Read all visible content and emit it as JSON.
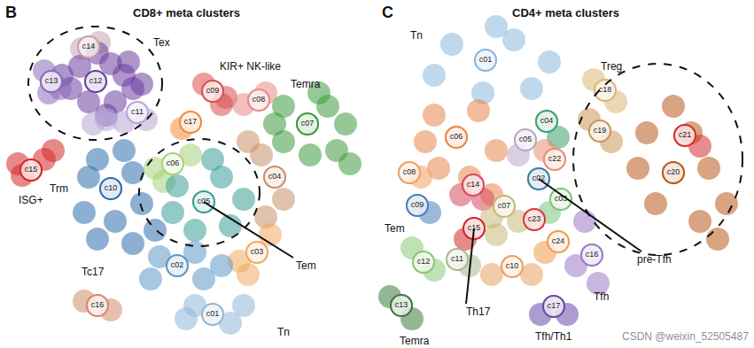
{
  "chart_data": [
    {
      "type": "scatter",
      "panel_label": "B",
      "title": "CD8+ meta clusters",
      "xlim": [
        0,
        420
      ],
      "ylim": [
        393,
        0
      ],
      "tick_labels": false,
      "grid": false,
      "clusters": [
        {
          "name": "c14",
          "color": "#c9a0b0",
          "points": [
            [
              100,
              53
            ],
            [
              112,
              48
            ],
            [
              92,
              55
            ]
          ]
        },
        {
          "name": "c12",
          "color": "#6b3fa0",
          "points": [
            [
              108,
              92
            ],
            [
              90,
              75
            ],
            [
              125,
              72
            ],
            [
              140,
              85
            ],
            [
              150,
              100
            ],
            [
              130,
              115
            ],
            [
              100,
              115
            ],
            [
              80,
              100
            ],
            [
              70,
              85
            ],
            [
              110,
              60
            ],
            [
              145,
              70
            ],
            [
              160,
              95
            ],
            [
              120,
              130
            ]
          ]
        },
        {
          "name": "c13",
          "color": "#8e6bb8",
          "points": [
            [
              58,
              92
            ],
            [
              50,
              80
            ],
            [
              55,
              105
            ],
            [
              68,
              100
            ]
          ]
        },
        {
          "name": "c11",
          "color": "#b8a6d6",
          "points": [
            [
              155,
              127
            ],
            [
              140,
              138
            ],
            [
              165,
              135
            ],
            [
              120,
              135
            ],
            [
              105,
              140
            ]
          ]
        },
        {
          "name": "c09",
          "color": "#d94f4f",
          "points": [
            [
              240,
              103
            ],
            [
              255,
              110
            ],
            [
              230,
              95
            ],
            [
              250,
              118
            ]
          ]
        },
        {
          "name": "c08",
          "color": "#e88a8a",
          "points": [
            [
              292,
              113
            ],
            [
              275,
              118
            ],
            [
              300,
              105
            ]
          ]
        },
        {
          "name": "c07",
          "color": "#3e9a3e",
          "points": [
            [
              347,
              140
            ],
            [
              320,
              120
            ],
            [
              370,
              120
            ],
            [
              390,
              140
            ],
            [
              380,
              170
            ],
            [
              350,
              175
            ],
            [
              320,
              160
            ],
            [
              395,
              185
            ],
            [
              310,
              140
            ],
            [
              360,
              105
            ]
          ]
        },
        {
          "name": "c17",
          "color": "#f08c3a",
          "points": [
            [
              215,
              138
            ],
            [
              205,
              145
            ]
          ]
        },
        {
          "name": "c15",
          "color": "#d62828",
          "points": [
            [
              35,
              192
            ],
            [
              20,
              185
            ],
            [
              50,
              180
            ],
            [
              60,
              170
            ],
            [
              25,
              198
            ]
          ]
        },
        {
          "name": "c06",
          "color": "#a8d47a",
          "points": [
            [
              195,
              185
            ],
            [
              175,
              190
            ],
            [
              215,
              175
            ],
            [
              185,
              205
            ]
          ]
        },
        {
          "name": "c10",
          "color": "#2f6fad",
          "points": [
            [
              125,
              213
            ],
            [
              110,
              180
            ],
            [
              140,
              170
            ],
            [
              100,
              200
            ],
            [
              95,
              240
            ],
            [
              130,
              250
            ],
            [
              160,
              230
            ],
            [
              150,
              195
            ],
            [
              110,
              270
            ],
            [
              150,
              275
            ],
            [
              175,
              260
            ]
          ]
        },
        {
          "name": "c05",
          "color": "#3a9e95",
          "points": [
            [
              230,
              228
            ],
            [
              200,
              210
            ],
            [
              250,
              200
            ],
            [
              275,
              225
            ],
            [
              260,
              255
            ],
            [
              220,
              260
            ],
            [
              195,
              240
            ],
            [
              240,
              180
            ]
          ]
        },
        {
          "name": "c04",
          "color": "#c8906a",
          "points": [
            [
              310,
              200
            ],
            [
              295,
              175
            ],
            [
              320,
              225
            ],
            [
              300,
              245
            ],
            [
              280,
              160
            ]
          ]
        },
        {
          "name": "c03",
          "color": "#f0a860",
          "points": [
            [
              290,
              285
            ],
            [
              270,
              295
            ],
            [
              305,
              265
            ],
            [
              280,
              310
            ]
          ]
        },
        {
          "name": "c02",
          "color": "#5e97c6",
          "points": [
            [
              200,
              300
            ],
            [
              180,
              290
            ],
            [
              220,
              285
            ],
            [
              170,
              315
            ],
            [
              230,
              315
            ],
            [
              250,
              300
            ]
          ]
        },
        {
          "name": "c01",
          "color": "#8fb8d8",
          "points": [
            [
              240,
              355
            ],
            [
              220,
              345
            ],
            [
              260,
              365
            ],
            [
              275,
              345
            ],
            [
              210,
              360
            ]
          ]
        },
        {
          "name": "c16",
          "color": "#d48a6a",
          "points": [
            [
              110,
              345
            ],
            [
              95,
              340
            ],
            [
              125,
              350
            ]
          ]
        }
      ],
      "groups": [
        {
          "label": "Tex",
          "label_at": [
            182,
            48
          ],
          "clusters": [
            "c12",
            "c13",
            "c14",
            "c11"
          ]
        },
        {
          "label": "KIR+ NK-like",
          "label_at": [
            282,
            75
          ]
        },
        {
          "label": "Temra",
          "label_at": [
            345,
            95
          ]
        },
        {
          "label": "ISG+",
          "label_at": [
            35,
            226
          ]
        },
        {
          "label": "Trm",
          "label_at": [
            66,
            213
          ]
        },
        {
          "label": "Tem",
          "label_at": [
            345,
            300
          ],
          "clusters": [
            "c06",
            "c05"
          ],
          "points_to": "c05"
        },
        {
          "label": "Tc17",
          "label_at": [
            105,
            307
          ]
        },
        {
          "label": "Tn",
          "label_at": [
            320,
            375
          ]
        }
      ]
    },
    {
      "type": "scatter",
      "panel_label": "C",
      "title": "CD4+ meta clusters",
      "xlim": [
        425,
        851
      ],
      "ylim": [
        393,
        0
      ],
      "tick_labels": false,
      "grid": false,
      "watermark": "CSDN @weixin_52505487",
      "clusters": [
        {
          "name": "c01",
          "color": "#8bb8dc",
          "points": [
            [
              548,
              68
            ],
            [
              510,
              50
            ],
            [
              580,
              45
            ],
            [
              620,
              70
            ],
            [
              490,
              85
            ],
            [
              545,
              105
            ],
            [
              600,
              100
            ],
            [
              560,
              30
            ]
          ]
        },
        {
          "name": "c18",
          "color": "#d8b878",
          "points": [
            [
              683,
              102
            ],
            [
              670,
              90
            ],
            [
              695,
              115
            ]
          ]
        },
        {
          "name": "c19",
          "color": "#c89858",
          "points": [
            [
              677,
              148
            ],
            [
              665,
              135
            ],
            [
              690,
              160
            ]
          ]
        },
        {
          "name": "c20",
          "color": "#b85a1a",
          "points": [
            [
              760,
              195
            ],
            [
              730,
              150
            ],
            [
              780,
              150
            ],
            [
              800,
              190
            ],
            [
              820,
              230
            ],
            [
              790,
              250
            ],
            [
              740,
              230
            ],
            [
              720,
              190
            ],
            [
              760,
              120
            ],
            [
              810,
              270
            ]
          ]
        },
        {
          "name": "c21",
          "color": "#d63030",
          "points": [
            [
              773,
              153
            ],
            [
              790,
              165
            ]
          ]
        },
        {
          "name": "c06",
          "color": "#e8874a",
          "points": [
            [
              515,
              155
            ],
            [
              490,
              130
            ],
            [
              540,
              125
            ],
            [
              560,
              170
            ],
            [
              530,
              200
            ],
            [
              495,
              190
            ],
            [
              480,
              160
            ],
            [
              555,
              220
            ]
          ]
        },
        {
          "name": "c04",
          "color": "#3aa070",
          "points": [
            [
              617,
              137
            ],
            [
              630,
              155
            ]
          ]
        },
        {
          "name": "c05",
          "color": "#b9a8c8",
          "points": [
            [
              593,
              158
            ],
            [
              585,
              175
            ]
          ]
        },
        {
          "name": "c22",
          "color": "#e89070",
          "points": [
            [
              626,
              180
            ],
            [
              615,
              170
            ]
          ]
        },
        {
          "name": "c08",
          "color": "#f0a060",
          "points": [
            [
              462,
              195
            ],
            [
              475,
              200
            ]
          ]
        },
        {
          "name": "c02",
          "color": "#3a7fa0",
          "points": [
            [
              608,
              202
            ]
          ]
        },
        {
          "name": "c14",
          "color": "#d84860",
          "points": [
            [
              534,
              209
            ],
            [
              520,
              220
            ],
            [
              545,
              225
            ]
          ]
        },
        {
          "name": "c09",
          "color": "#4a80b8",
          "points": [
            [
              471,
              232
            ],
            [
              485,
              240
            ]
          ]
        },
        {
          "name": "c07",
          "color": "#c8b878",
          "points": [
            [
              569,
              233
            ],
            [
              555,
              245
            ],
            [
              585,
              250
            ],
            [
              560,
              265
            ]
          ]
        },
        {
          "name": "c03",
          "color": "#7ec47e",
          "points": [
            [
              633,
              225
            ],
            [
              620,
              240
            ]
          ]
        },
        {
          "name": "c23",
          "color": "#d83a3a",
          "points": [
            [
              603,
              248
            ]
          ]
        },
        {
          "name": "c15",
          "color": "#d02828",
          "points": [
            [
              535,
              258
            ],
            [
              525,
              270
            ]
          ]
        },
        {
          "name": "c24",
          "color": "#f09a50",
          "points": [
            [
              630,
              273
            ],
            [
              615,
              285
            ]
          ]
        },
        {
          "name": "c16",
          "color": "#9a7ac8",
          "points": [
            [
              668,
              288
            ],
            [
              660,
              250
            ],
            [
              675,
              320
            ],
            [
              650,
              300
            ]
          ]
        },
        {
          "name": "c11",
          "color": "#a8b890",
          "points": [
            [
              516,
              293
            ],
            [
              530,
              300
            ]
          ]
        },
        {
          "name": "c10",
          "color": "#e8a060",
          "points": [
            [
              578,
              301
            ],
            [
              600,
              310
            ],
            [
              555,
              310
            ]
          ]
        },
        {
          "name": "c12",
          "color": "#8ac878",
          "points": [
            [
              478,
              296
            ],
            [
              465,
              280
            ],
            [
              490,
              305
            ]
          ]
        },
        {
          "name": "c13",
          "color": "#3e7a3a",
          "points": [
            [
              453,
              345
            ],
            [
              440,
              335
            ],
            [
              465,
              360
            ]
          ]
        },
        {
          "name": "c17",
          "color": "#6a4aa8",
          "points": [
            [
              625,
              346
            ],
            [
              610,
              355
            ],
            [
              640,
              355
            ]
          ]
        }
      ],
      "groups": [
        {
          "label": "Tn",
          "label_at": [
            470,
            40
          ]
        },
        {
          "label": "Treg",
          "label_at": [
            690,
            75
          ],
          "clusters": [
            "c18",
            "c19",
            "c20",
            "c21"
          ]
        },
        {
          "label": "Tem",
          "label_at": [
            445,
            258
          ]
        },
        {
          "label": "Th17",
          "label_at": [
            540,
            352
          ],
          "points_to": "c15"
        },
        {
          "label": "Temra",
          "label_at": [
            468,
            385
          ]
        },
        {
          "label": "pre-Tfh",
          "label_at": [
            738,
            293
          ],
          "points_to": "c02"
        },
        {
          "label": "Tfh",
          "label_at": [
            678,
            335
          ]
        },
        {
          "label": "Tfh/Th1",
          "label_at": [
            625,
            380
          ]
        }
      ]
    }
  ]
}
